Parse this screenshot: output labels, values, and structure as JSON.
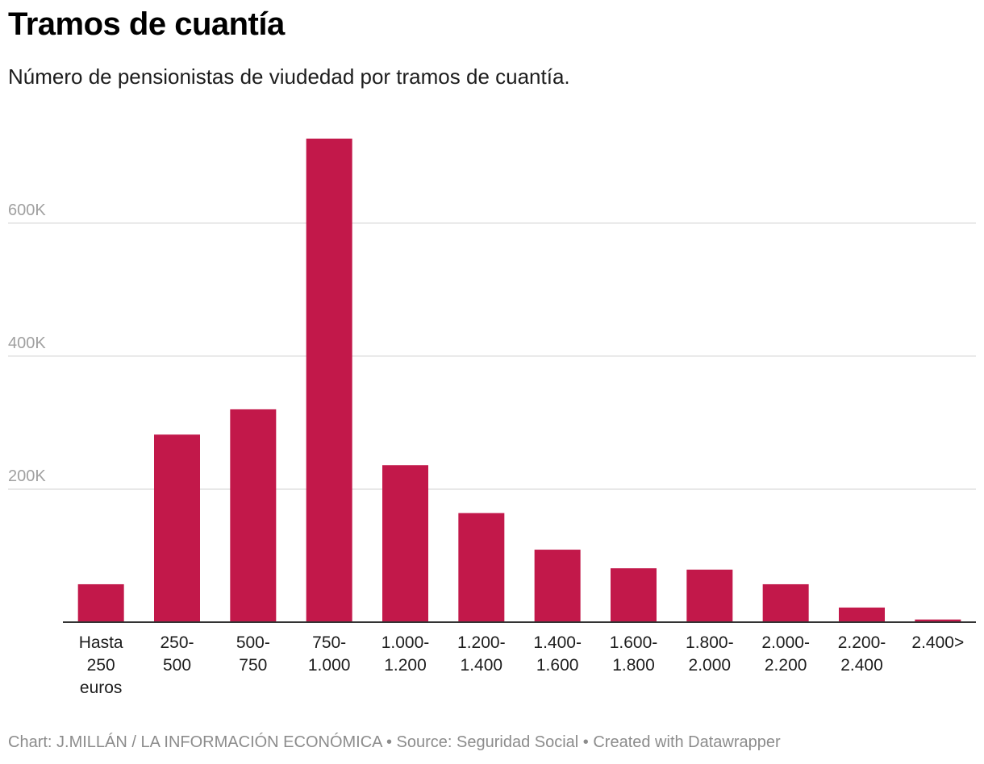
{
  "title": "Tramos de cuantía",
  "subtitle": "Número de pensionistas de viudedad por tramos de cuantía.",
  "footer": "Chart: J.MILLÁN / LA INFORMACIÓN ECONÓMICA • Source: Seguridad Social • Created with Datawrapper",
  "colors": {
    "bar": "#c2184a",
    "grid": "#e0e0e0",
    "axis_text": "#a0a0a0",
    "baseline": "#333333"
  },
  "chart_data": {
    "type": "bar",
    "categories": [
      [
        "Hasta",
        "250",
        "euros"
      ],
      [
        "250-",
        "500"
      ],
      [
        "500-",
        "750"
      ],
      [
        "750-",
        "1.000"
      ],
      [
        "1.000-",
        "1.200"
      ],
      [
        "1.200-",
        "1.400"
      ],
      [
        "1.400-",
        "1.600"
      ],
      [
        "1.600-",
        "1.800"
      ],
      [
        "1.800-",
        "2.000"
      ],
      [
        "2.000-",
        "2.200"
      ],
      [
        "2.200-",
        "2.400"
      ],
      [
        "2.400>"
      ]
    ],
    "values": [
      57000,
      282000,
      320000,
      727000,
      236000,
      164000,
      109000,
      81000,
      79000,
      57000,
      22000,
      4000
    ],
    "yticks": [
      {
        "value": 200000,
        "label": "200K"
      },
      {
        "value": 400000,
        "label": "400K"
      },
      {
        "value": 600000,
        "label": "600K"
      }
    ],
    "ylim": [
      0,
      727000
    ],
    "grid": true,
    "xlabel": "",
    "ylabel": ""
  }
}
